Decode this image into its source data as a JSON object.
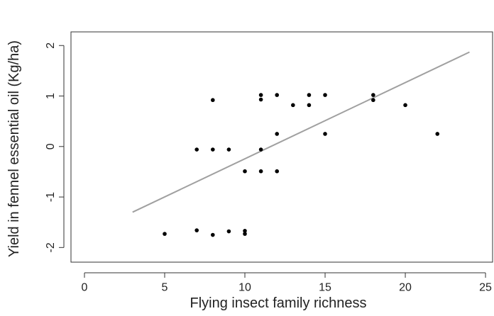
{
  "chart_data": {
    "type": "scatter",
    "x_label": "Flying insect family richness",
    "y_label": "Yield in fennel essential oil (Kg/ha)",
    "x": [
      5,
      7,
      7,
      8,
      8,
      8,
      9,
      9,
      10,
      10,
      10,
      11,
      11,
      11,
      11,
      12,
      12,
      12,
      13,
      14,
      14,
      15,
      15,
      18,
      18,
      20,
      22
    ],
    "values": [
      -1.73,
      -1.66,
      -0.06,
      0.92,
      -0.06,
      -1.75,
      -0.06,
      -1.68,
      -0.49,
      -1.67,
      -1.73,
      1.02,
      0.93,
      -0.06,
      -0.49,
      1.02,
      0.25,
      -0.49,
      0.82,
      1.02,
      0.82,
      1.02,
      0.25,
      1.02,
      0.92,
      0.82,
      0.25
    ],
    "color": "#000000",
    "fit": {
      "x": [
        3,
        24
      ],
      "values": [
        -1.3,
        1.87
      ],
      "color": "#a0a0a0"
    },
    "xlim": [
      -0.84,
      25.44
    ],
    "ylim": [
      -2.29,
      2.27
    ],
    "xticks": [
      0,
      5,
      10,
      15,
      20,
      25
    ],
    "yticks": [
      -2,
      -1,
      0,
      1,
      2
    ]
  }
}
